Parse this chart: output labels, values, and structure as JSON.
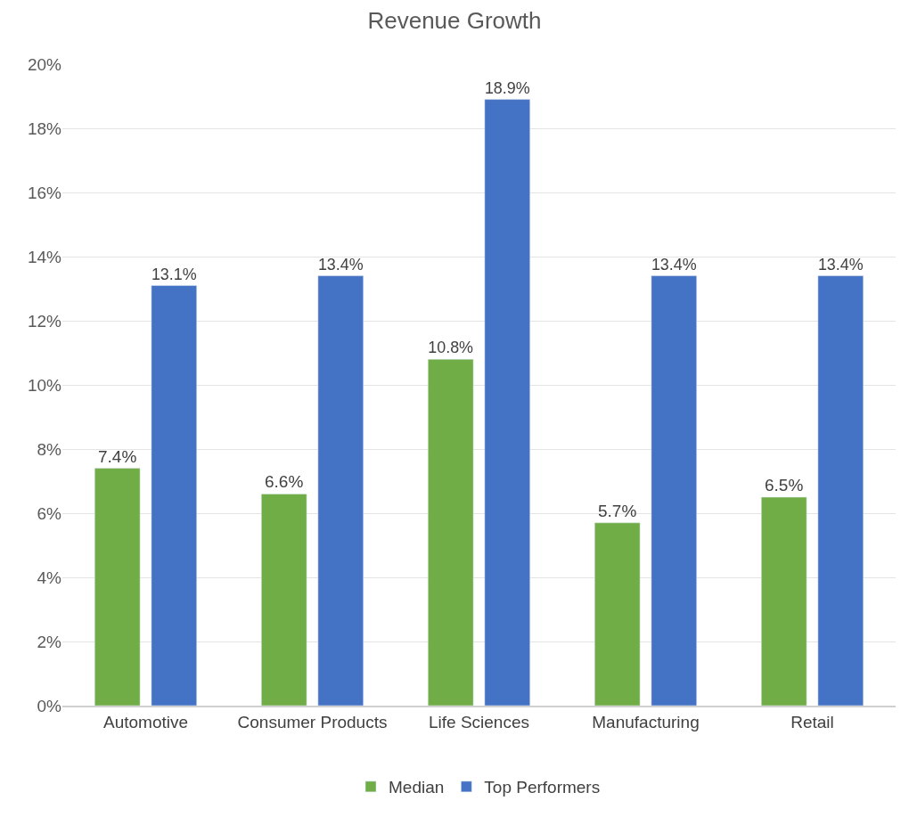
{
  "chart_data": {
    "type": "bar",
    "title": "Revenue Growth",
    "categories": [
      "Automotive",
      "Consumer Products",
      "Life Sciences",
      "Manufacturing",
      "Retail"
    ],
    "series": [
      {
        "name": "Median",
        "color": "#70ad47",
        "values": [
          7.4,
          6.6,
          10.8,
          5.7,
          6.5
        ],
        "value_labels": [
          "7.4%",
          "6.6%",
          "10.8%",
          "5.7%",
          "6.5%"
        ]
      },
      {
        "name": "Top Performers",
        "color": "#4472c4",
        "values": [
          13.1,
          13.4,
          18.9,
          13.4,
          13.4
        ],
        "value_labels": [
          "13.1%",
          "13.4%",
          "18.9%",
          "13.4%",
          "13.4%"
        ]
      }
    ],
    "ylim": [
      0,
      20
    ],
    "yticks": [
      {
        "value": 0,
        "label": "0%"
      },
      {
        "value": 2,
        "label": "2%"
      },
      {
        "value": 4,
        "label": "4%"
      },
      {
        "value": 6,
        "label": "6%"
      },
      {
        "value": 8,
        "label": "8%"
      },
      {
        "value": 10,
        "label": "10%"
      },
      {
        "value": 12,
        "label": "12%"
      },
      {
        "value": 14,
        "label": "14%"
      },
      {
        "value": 16,
        "label": "16%"
      },
      {
        "value": 18,
        "label": "18%"
      },
      {
        "value": 20,
        "label": "20%"
      }
    ],
    "grid": "y",
    "legend": "bottom"
  }
}
